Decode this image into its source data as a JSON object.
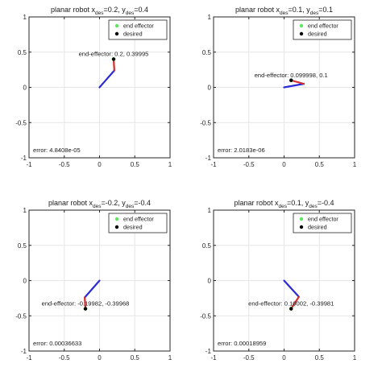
{
  "chart_data": [
    {
      "type": "line",
      "title_prefix": "planar robot x",
      "x_des_label": "=0.2",
      "y_des_label": "=0.4",
      "subscript": "des",
      "xlim": [
        -1,
        1
      ],
      "ylim": [
        -1,
        1
      ],
      "xticks": [
        -1,
        -0.5,
        0,
        0.5,
        1
      ],
      "xtick_labels": [
        "-1",
        "-0.5",
        "0",
        "0.5",
        "1"
      ],
      "yticks": [
        -1,
        -0.5,
        0,
        0.5,
        1
      ],
      "ytick_labels": [
        "-1",
        "-0.5",
        "0",
        "0.5",
        "1"
      ],
      "grid": true,
      "legend_position": "top-right",
      "legend": [
        "end effector",
        "desired"
      ],
      "series": [
        {
          "name": "link 1",
          "color": "#2b2bd6",
          "x": [
            0,
            0.21
          ],
          "y": [
            0,
            0.24
          ]
        },
        {
          "name": "link 2",
          "color": "#d62b2b",
          "x": [
            0.21,
            0.2
          ],
          "y": [
            0.24,
            0.39995
          ]
        }
      ],
      "end_effector": {
        "x": 0.2,
        "y": 0.39995,
        "color": "#5ee85e"
      },
      "desired": {
        "x": 0.2,
        "y": 0.4,
        "color": "#000000"
      },
      "annotation": "end-effector: 0.2, 0.39995",
      "error_text": "error: 4.8408e-05"
    },
    {
      "type": "line",
      "title_prefix": "planar robot x",
      "x_des_label": "=0.1",
      "y_des_label": "=0.1",
      "subscript": "des",
      "xlim": [
        -1,
        1
      ],
      "ylim": [
        -1,
        1
      ],
      "xticks": [
        -1,
        -0.5,
        0,
        0.5,
        1
      ],
      "xtick_labels": [
        "-1",
        "-0.5",
        "0",
        "0.5",
        "1"
      ],
      "yticks": [
        -1,
        -0.5,
        0,
        0.5,
        1
      ],
      "ytick_labels": [
        "-1",
        "-0.5",
        "0",
        "0.5",
        "1"
      ],
      "grid": true,
      "legend_position": "top-right",
      "legend": [
        "end effector",
        "desired"
      ],
      "series": [
        {
          "name": "link 1",
          "color": "#2b2bd6",
          "x": [
            0,
            0.28
          ],
          "y": [
            0,
            0.05
          ]
        },
        {
          "name": "link 2",
          "color": "#d62b2b",
          "x": [
            0.28,
            0.1
          ],
          "y": [
            0.05,
            0.1
          ]
        }
      ],
      "end_effector": {
        "x": 0.099998,
        "y": 0.1,
        "color": "#5ee85e"
      },
      "desired": {
        "x": 0.1,
        "y": 0.1,
        "color": "#000000"
      },
      "annotation": "end-effector: 0.099998, 0.1",
      "error_text": "error: 2.0183e-06"
    },
    {
      "type": "line",
      "title_prefix": "planar robot x",
      "x_des_label": "=-0.2",
      "y_des_label": "=-0.4",
      "subscript": "des",
      "xlim": [
        -1,
        1
      ],
      "ylim": [
        -1,
        1
      ],
      "xticks": [
        -1,
        -0.5,
        0,
        0.5,
        1
      ],
      "xtick_labels": [
        "-1",
        "-0.5",
        "0",
        "0.5",
        "1"
      ],
      "yticks": [
        -1,
        -0.5,
        0,
        0.5,
        1
      ],
      "ytick_labels": [
        "-1",
        "-0.5",
        "0",
        "0.5",
        "1"
      ],
      "grid": true,
      "legend_position": "top-right",
      "legend": [
        "end effector",
        "desired"
      ],
      "series": [
        {
          "name": "link 1",
          "color": "#2b2bd6",
          "x": [
            0,
            -0.21
          ],
          "y": [
            0,
            -0.24
          ]
        },
        {
          "name": "link 2",
          "color": "#d62b2b",
          "x": [
            -0.21,
            -0.19982
          ],
          "y": [
            -0.24,
            -0.39968
          ]
        }
      ],
      "end_effector": {
        "x": -0.19982,
        "y": -0.39968,
        "color": "#5ee85e"
      },
      "desired": {
        "x": -0.2,
        "y": -0.4,
        "color": "#000000"
      },
      "annotation": "end-effector: -0.19982, -0.39968",
      "error_text": "error: 0.00036633"
    },
    {
      "type": "line",
      "title_prefix": "planar robot x",
      "x_des_label": "=0.1",
      "y_des_label": "=-0.4",
      "subscript": "des",
      "xlim": [
        -1,
        1
      ],
      "ylim": [
        -1,
        1
      ],
      "xticks": [
        -1,
        -0.5,
        0,
        0.5,
        1
      ],
      "xtick_labels": [
        "-1",
        "-0.5",
        "0",
        "0.5",
        "1"
      ],
      "yticks": [
        -1,
        -0.5,
        0,
        0.5,
        1
      ],
      "ytick_labels": [
        "-1",
        "-0.5",
        "0",
        "0.5",
        "1"
      ],
      "grid": true,
      "legend_position": "top-right",
      "legend": [
        "end effector",
        "desired"
      ],
      "series": [
        {
          "name": "link 1",
          "color": "#2b2bd6",
          "x": [
            0,
            0.21
          ],
          "y": [
            0,
            -0.23
          ]
        },
        {
          "name": "link 2",
          "color": "#d62b2b",
          "x": [
            0.21,
            0.10002
          ],
          "y": [
            -0.23,
            -0.39981
          ]
        }
      ],
      "end_effector": {
        "x": 0.10002,
        "y": -0.39981,
        "color": "#5ee85e"
      },
      "desired": {
        "x": 0.1,
        "y": -0.4,
        "color": "#000000"
      },
      "annotation": "end-effector: 0.10002, -0.39981",
      "error_text": "error: 0.00018959"
    }
  ]
}
